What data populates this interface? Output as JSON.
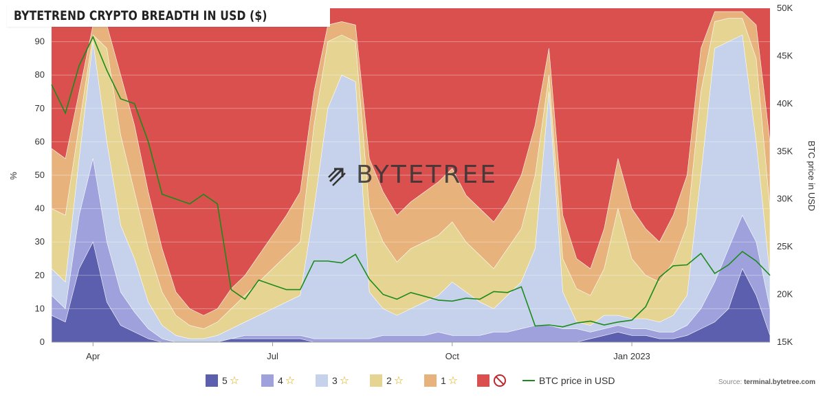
{
  "title": "BYTETREND CRYPTO BREADTH IN USD ($)",
  "watermark": "BYTETREE",
  "source_label": "Source:",
  "source_site": "terminal.bytetree.com",
  "colors": {
    "s5": "#5b5fad",
    "s4": "#9ea1dc",
    "s3": "#c6d2ec",
    "s2": "#e6d493",
    "s1": "#e7b27c",
    "s0": "#d9504f",
    "btc": "#1a8a1a"
  },
  "chart_data": {
    "type": "area",
    "title": "BYTETREND CRYPTO BREADTH IN USD ($)",
    "ylabel": "%",
    "y2label": "BTC price in USD",
    "ylim": [
      0,
      100
    ],
    "y2lim": [
      15000,
      50000
    ],
    "yticks": [
      "0",
      "10",
      "20",
      "30",
      "40",
      "50",
      "60",
      "70",
      "80",
      "90"
    ],
    "y2ticks": [
      "15K",
      "20K",
      "25K",
      "30K",
      "35K",
      "40K",
      "45K",
      "50K"
    ],
    "xticks": [
      "Apr",
      "Jul",
      "Oct",
      "Jan 2023"
    ],
    "xtick_positions": [
      5,
      18,
      31,
      44
    ],
    "x_range": [
      2,
      54
    ],
    "stacking": "cumulative boundaries (top of 5★, 4★, 3★, 2★, 1★ bands in %); remainder to 100 is 🚫",
    "x": [
      2,
      3,
      4,
      5,
      6,
      7,
      8,
      9,
      10,
      11,
      12,
      13,
      14,
      15,
      16,
      17,
      18,
      19,
      20,
      21,
      22,
      23,
      24,
      25,
      26,
      27,
      28,
      29,
      30,
      31,
      32,
      33,
      34,
      35,
      36,
      37,
      38,
      39,
      40,
      41,
      42,
      43,
      44,
      45,
      46,
      47,
      48,
      49,
      50,
      51,
      52,
      53,
      54
    ],
    "series": [
      {
        "name": "5",
        "values": [
          8,
          6,
          22,
          30,
          12,
          5,
          3,
          1,
          0,
          0,
          0,
          0,
          0,
          1,
          1,
          1,
          1,
          1,
          1,
          0,
          0,
          0,
          0,
          0,
          0,
          0,
          0,
          0,
          0,
          0,
          0,
          0,
          0,
          0,
          0,
          0,
          0,
          0,
          0,
          1,
          2,
          3,
          2,
          2,
          1,
          1,
          2,
          4,
          6,
          10,
          22,
          14,
          2
        ]
      },
      {
        "name": "4",
        "values": [
          14,
          10,
          38,
          55,
          30,
          15,
          9,
          4,
          1,
          0,
          0,
          0,
          0,
          1,
          2,
          2,
          2,
          2,
          2,
          1,
          1,
          1,
          1,
          1,
          2,
          2,
          2,
          2,
          3,
          2,
          2,
          2,
          3,
          3,
          4,
          5,
          5,
          4,
          4,
          3,
          4,
          5,
          4,
          4,
          3,
          3,
          5,
          10,
          18,
          28,
          38,
          30,
          10
        ]
      },
      {
        "name": "3",
        "values": [
          22,
          18,
          55,
          90,
          60,
          35,
          25,
          12,
          5,
          2,
          1,
          1,
          2,
          4,
          6,
          8,
          10,
          12,
          14,
          40,
          70,
          80,
          78,
          15,
          10,
          8,
          10,
          12,
          14,
          18,
          15,
          12,
          10,
          14,
          18,
          28,
          75,
          15,
          6,
          5,
          8,
          8,
          7,
          7,
          6,
          8,
          14,
          50,
          88,
          90,
          92,
          60,
          20
        ]
      },
      {
        "name": "2",
        "values": [
          40,
          38,
          65,
          92,
          88,
          62,
          45,
          28,
          15,
          8,
          5,
          4,
          6,
          10,
          14,
          18,
          22,
          26,
          30,
          65,
          90,
          92,
          90,
          40,
          30,
          24,
          28,
          30,
          32,
          36,
          30,
          26,
          22,
          28,
          34,
          50,
          80,
          25,
          16,
          14,
          22,
          40,
          25,
          20,
          18,
          24,
          35,
          75,
          96,
          97,
          97,
          85,
          40
        ]
      },
      {
        "name": "1",
        "values": [
          58,
          55,
          75,
          95,
          95,
          80,
          65,
          45,
          28,
          15,
          10,
          8,
          10,
          16,
          20,
          26,
          32,
          38,
          45,
          75,
          95,
          96,
          95,
          55,
          45,
          38,
          42,
          45,
          48,
          52,
          44,
          40,
          36,
          42,
          50,
          65,
          88,
          38,
          25,
          22,
          34,
          55,
          40,
          34,
          30,
          38,
          50,
          88,
          99,
          99,
          99,
          95,
          60
        ]
      },
      {
        "name": "BTC price in USD",
        "values": [
          42000,
          39000,
          44000,
          47000,
          43500,
          40500,
          40000,
          36000,
          30500,
          30000,
          29500,
          30500,
          29500,
          20500,
          19500,
          21500,
          21000,
          20500,
          20500,
          23500,
          23500,
          23300,
          24200,
          21600,
          20000,
          19500,
          20200,
          19800,
          19400,
          19300,
          19600,
          19500,
          20300,
          20200,
          20800,
          16700,
          16800,
          16600,
          17000,
          17200,
          16800,
          17100,
          17300,
          18700,
          21800,
          23000,
          23100,
          24300,
          22200,
          23100,
          24500,
          23500,
          22000
        ]
      }
    ]
  },
  "legend": {
    "items": [
      {
        "label": "5",
        "stars": "☆"
      },
      {
        "label": "4",
        "stars": "☆"
      },
      {
        "label": "3",
        "stars": "☆"
      },
      {
        "label": "2",
        "stars": "☆"
      },
      {
        "label": "1",
        "stars": "☆"
      }
    ],
    "btc_label": "BTC price in USD"
  }
}
